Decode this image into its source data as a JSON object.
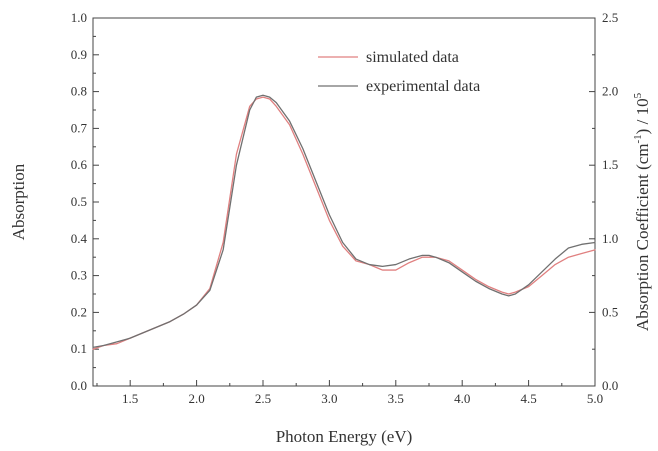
{
  "chart_data": {
    "type": "line",
    "title": "",
    "xlabel": "Photon Energy (eV)",
    "ylabel": "Absorption",
    "ylabel_right_prefix": "Absorption Coefficient (cm",
    "ylabel_right_exp1": "-1",
    "ylabel_right_mid": ") / 10",
    "ylabel_right_exp2": "5",
    "xlim": [
      1.22,
      5.0
    ],
    "ylim": [
      0.0,
      1.0
    ],
    "ylim_right": [
      0.0,
      2.5
    ],
    "x_ticks": [
      "1.5",
      "2.0",
      "2.5",
      "3.0",
      "3.5",
      "4.0",
      "4.5",
      "5.0"
    ],
    "y_ticks": [
      "0.0",
      "0.1",
      "0.2",
      "0.3",
      "0.4",
      "0.5",
      "0.6",
      "0.7",
      "0.8",
      "0.9",
      "1.0"
    ],
    "y_right_ticks": [
      "0.0",
      "0.5",
      "1.0",
      "1.5",
      "2.0",
      "2.5"
    ],
    "legend_position": "top-right",
    "grid": false,
    "series": [
      {
        "name": "simulated data",
        "color": "#e08080",
        "x": [
          1.22,
          1.3,
          1.4,
          1.5,
          1.6,
          1.7,
          1.8,
          1.9,
          2.0,
          2.1,
          2.2,
          2.3,
          2.4,
          2.45,
          2.5,
          2.55,
          2.6,
          2.7,
          2.8,
          2.9,
          3.0,
          3.1,
          3.2,
          3.3,
          3.4,
          3.5,
          3.6,
          3.7,
          3.75,
          3.8,
          3.9,
          4.0,
          4.1,
          4.2,
          4.3,
          4.35,
          4.4,
          4.5,
          4.6,
          4.7,
          4.8,
          4.9,
          5.0
        ],
        "y": [
          0.1,
          0.11,
          0.115,
          0.13,
          0.145,
          0.16,
          0.175,
          0.195,
          0.22,
          0.265,
          0.39,
          0.63,
          0.76,
          0.78,
          0.785,
          0.78,
          0.76,
          0.71,
          0.63,
          0.54,
          0.45,
          0.38,
          0.34,
          0.33,
          0.315,
          0.315,
          0.335,
          0.35,
          0.35,
          0.35,
          0.34,
          0.315,
          0.29,
          0.27,
          0.255,
          0.25,
          0.255,
          0.27,
          0.3,
          0.33,
          0.35,
          0.36,
          0.37
        ]
      },
      {
        "name": "experimental data",
        "color": "#707070",
        "x": [
          1.22,
          1.3,
          1.4,
          1.5,
          1.6,
          1.7,
          1.8,
          1.9,
          2.0,
          2.1,
          2.2,
          2.3,
          2.4,
          2.45,
          2.5,
          2.55,
          2.6,
          2.7,
          2.8,
          2.9,
          3.0,
          3.1,
          3.2,
          3.3,
          3.4,
          3.5,
          3.6,
          3.7,
          3.75,
          3.8,
          3.9,
          4.0,
          4.1,
          4.2,
          4.3,
          4.35,
          4.4,
          4.5,
          4.6,
          4.7,
          4.8,
          4.9,
          5.0
        ],
        "y": [
          0.105,
          0.11,
          0.12,
          0.13,
          0.145,
          0.16,
          0.175,
          0.195,
          0.22,
          0.26,
          0.37,
          0.6,
          0.75,
          0.785,
          0.79,
          0.785,
          0.77,
          0.72,
          0.645,
          0.555,
          0.465,
          0.39,
          0.345,
          0.33,
          0.325,
          0.33,
          0.345,
          0.355,
          0.355,
          0.35,
          0.335,
          0.31,
          0.285,
          0.265,
          0.25,
          0.245,
          0.25,
          0.275,
          0.31,
          0.345,
          0.375,
          0.385,
          0.39
        ]
      }
    ]
  }
}
